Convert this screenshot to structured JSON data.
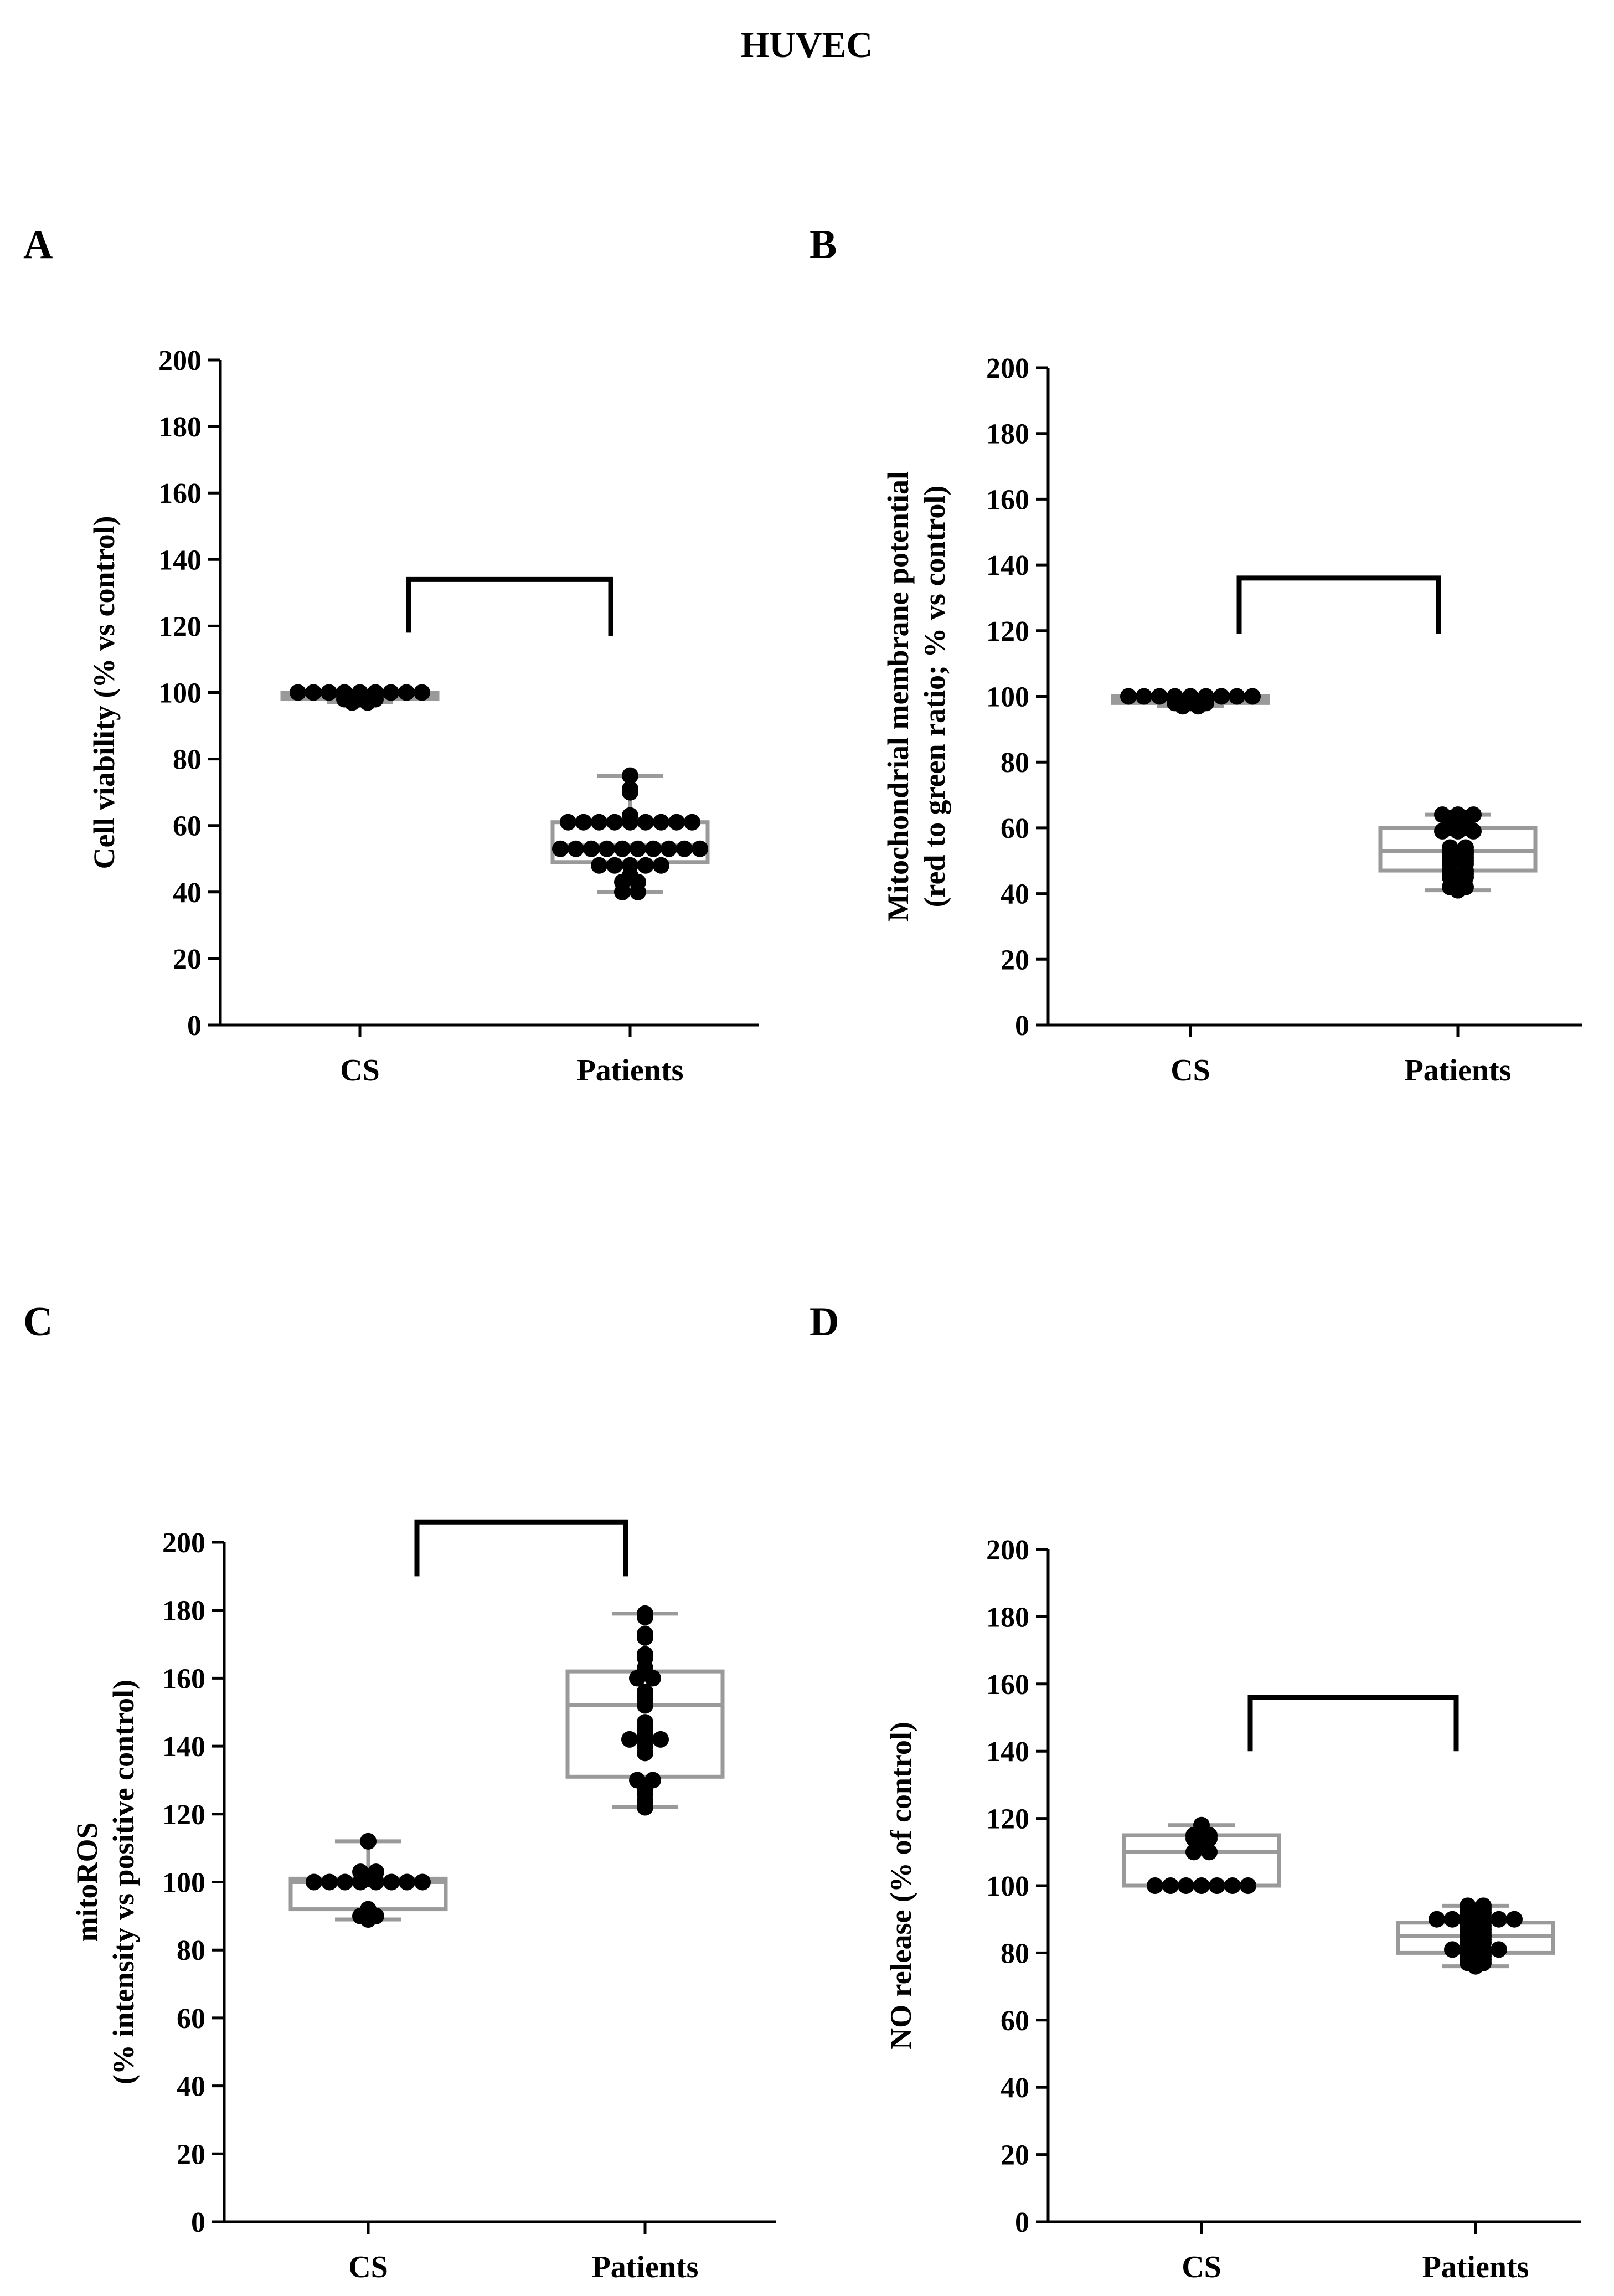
{
  "title": "HUVEC",
  "colors": {
    "point": "#000000",
    "box": "#9a9a9a",
    "axis": "#000000",
    "bracket": "#000000"
  },
  "chart_data": [
    {
      "panel": "A",
      "type": "box_scatter",
      "ylabel_lines": [
        "Cell viability (% vs control)"
      ],
      "categories": [
        "CS",
        "Patients"
      ],
      "ylim": [
        0,
        200
      ],
      "yticks": [
        "0",
        "20",
        "40",
        "60",
        "80",
        "100",
        "120",
        "140",
        "160",
        "180",
        "200"
      ],
      "significance_bracket": {
        "between": [
          "CS",
          "Patients"
        ],
        "y": 134,
        "left_drop": 118,
        "right_drop": 117
      },
      "series": [
        {
          "name": "CS",
          "box": {
            "min": 97,
            "q1": 98,
            "median": 99,
            "q3": 100,
            "max": 100
          },
          "values": [
            100,
            100,
            100,
            100,
            100,
            99,
            99,
            98,
            98,
            97,
            97,
            98,
            99,
            100,
            100,
            100,
            100
          ]
        },
        {
          "name": "Patients",
          "box": {
            "min": 40,
            "q1": 49,
            "median": 54,
            "q3": 61,
            "max": 75
          },
          "values": [
            75,
            71,
            70,
            63,
            61,
            61,
            61,
            61,
            61,
            61,
            61,
            61,
            61,
            53,
            53,
            53,
            53,
            53,
            53,
            53,
            53,
            53,
            53,
            48,
            48,
            48,
            48,
            48,
            45,
            43,
            43,
            40,
            40
          ]
        }
      ]
    },
    {
      "panel": "B",
      "type": "box_scatter",
      "ylabel_lines": [
        "Mitochondrial membrane potential",
        "(red to green ratio; % vs control)"
      ],
      "categories": [
        "CS",
        "Patients"
      ],
      "ylim": [
        0,
        200
      ],
      "yticks": [
        "0",
        "20",
        "40",
        "60",
        "80",
        "100",
        "120",
        "140",
        "160",
        "180",
        "200"
      ],
      "significance_bracket": {
        "between": [
          "CS",
          "Patients"
        ],
        "y": 136,
        "left_drop": 119,
        "right_drop": 119
      },
      "series": [
        {
          "name": "CS",
          "box": {
            "min": 97,
            "q1": 98,
            "median": 99,
            "q3": 100,
            "max": 100
          },
          "values": [
            100,
            100,
            100,
            100,
            100,
            99,
            99,
            98,
            98,
            97,
            97,
            98,
            99,
            100,
            100,
            100,
            100
          ]
        },
        {
          "name": "Patients",
          "box": {
            "min": 41,
            "q1": 47,
            "median": 53,
            "q3": 60,
            "max": 64
          },
          "values": [
            64,
            63,
            62,
            60,
            59,
            59,
            59,
            60,
            61,
            63,
            64,
            64,
            54,
            53,
            52,
            51,
            50,
            49,
            49,
            50,
            51,
            52,
            53,
            54,
            47,
            46,
            45,
            44,
            42,
            41,
            42,
            43,
            45,
            46,
            47
          ]
        }
      ]
    },
    {
      "panel": "C",
      "type": "box_scatter",
      "ylabel_lines": [
        "mitoROS",
        "(% intensity vs positive control)"
      ],
      "categories": [
        "CS",
        "Patients"
      ],
      "ylim": [
        0,
        200
      ],
      "yticks": [
        "0",
        "20",
        "40",
        "60",
        "80",
        "100",
        "120",
        "140",
        "160",
        "180",
        "200"
      ],
      "significance_bracket": {
        "between": [
          "CS",
          "Patients"
        ],
        "y": 206,
        "left_drop": 190,
        "right_drop": 190
      },
      "series": [
        {
          "name": "CS",
          "box": {
            "min": 89,
            "q1": 92,
            "median": 100,
            "q3": 101,
            "max": 112
          },
          "values": [
            112,
            103,
            103,
            101,
            100,
            100,
            100,
            100,
            100,
            100,
            100,
            100,
            92,
            90,
            89,
            90
          ]
        },
        {
          "name": "Patients",
          "box": {
            "min": 122,
            "q1": 131,
            "median": 152,
            "q3": 162,
            "max": 179
          },
          "values": [
            179,
            178,
            173,
            172,
            167,
            166,
            163,
            162,
            160,
            160,
            156,
            155,
            154,
            152,
            147,
            145,
            144,
            142,
            142,
            142,
            140,
            138,
            130,
            130,
            128,
            127,
            126,
            124,
            122,
            123
          ]
        }
      ]
    },
    {
      "panel": "D",
      "type": "box_scatter",
      "ylabel_lines": [
        "NO release (% of control)"
      ],
      "categories": [
        "CS",
        "Patients"
      ],
      "ylim": [
        0,
        200
      ],
      "yticks": [
        "0",
        "20",
        "40",
        "60",
        "80",
        "100",
        "120",
        "140",
        "160",
        "180",
        "200"
      ],
      "significance_bracket": {
        "between": [
          "CS",
          "Patients"
        ],
        "y": 156,
        "left_drop": 140,
        "right_drop": 140
      },
      "series": [
        {
          "name": "CS",
          "box": {
            "min": 100,
            "q1": 100,
            "median": 110,
            "q3": 115,
            "max": 118
          },
          "values": [
            118,
            117,
            115,
            115,
            114,
            114,
            113,
            110,
            110,
            100,
            100,
            100,
            100,
            100,
            100,
            100
          ]
        },
        {
          "name": "Patients",
          "box": {
            "min": 76,
            "q1": 80,
            "median": 85,
            "q3": 89,
            "max": 94
          },
          "values": [
            94,
            93,
            92,
            91,
            90,
            90,
            90,
            90,
            90,
            90,
            91,
            92,
            93,
            94,
            89,
            88,
            87,
            86,
            85,
            84,
            83,
            82,
            83,
            84,
            85,
            86,
            87,
            88,
            89,
            81,
            81,
            80,
            79,
            78,
            77,
            76,
            77,
            78,
            79,
            80,
            81,
            81
          ]
        }
      ]
    }
  ]
}
